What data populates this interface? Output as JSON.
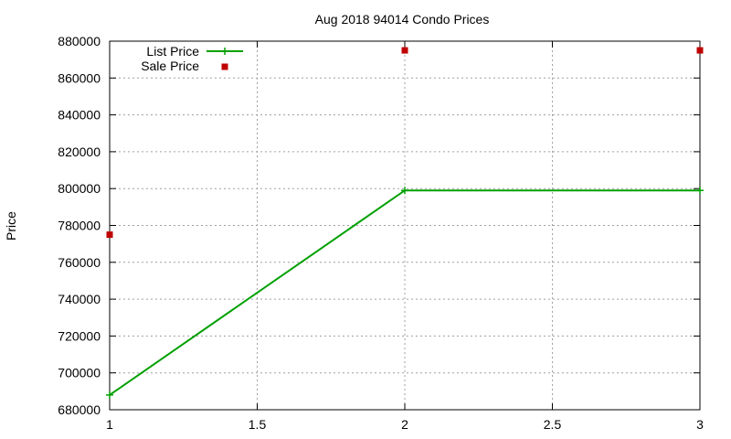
{
  "chart_data": {
    "type": "line",
    "title": "Aug 2018 94014 Condo Prices",
    "xlabel": "",
    "ylabel": "Price",
    "xlim": [
      1,
      3
    ],
    "ylim": [
      680000,
      880000
    ],
    "xticks": [
      "1",
      "1.5",
      "2",
      "2.5",
      "3"
    ],
    "yticks": [
      "680000",
      "700000",
      "720000",
      "740000",
      "760000",
      "780000",
      "800000",
      "820000",
      "840000",
      "860000",
      "880000"
    ],
    "grid": true,
    "legend_position": "top-left",
    "series": [
      {
        "name": "List Price",
        "style": "linespoints",
        "marker": "plus",
        "color": "#00a000",
        "points": [
          [
            1,
            688000
          ],
          [
            2,
            799000
          ],
          [
            3,
            799000
          ]
        ]
      },
      {
        "name": "Sale Price",
        "style": "points",
        "marker": "square",
        "color": "#c00000",
        "points": [
          [
            1,
            775000
          ],
          [
            2,
            875000
          ],
          [
            3,
            875000
          ]
        ]
      }
    ]
  }
}
